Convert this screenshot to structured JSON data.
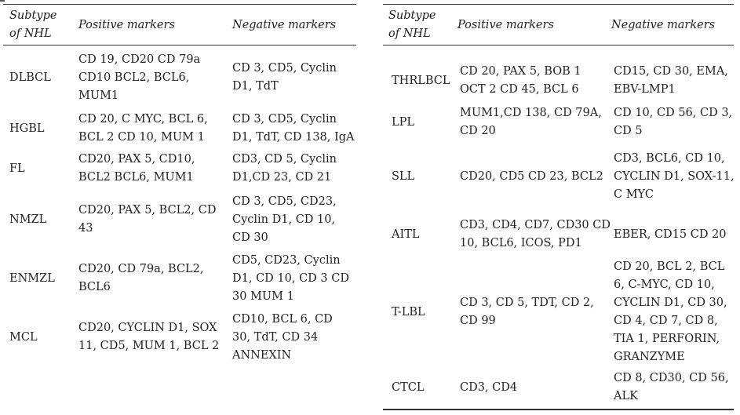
{
  "headers": {
    "subtype": [
      "Subtype",
      "of NHL"
    ],
    "positive": "Positive markers",
    "negative": "Negative markers"
  },
  "left_rows": [
    {
      "subtype": "DLBCL",
      "positive": [
        "CD 19, CD20 CD 79a",
        "CD10 BCL2, BCL6,",
        "MUM1"
      ],
      "negative": [
        "CD 3, CD5, Cyclin",
        "D1, TdT"
      ]
    },
    {
      "subtype": "HGBL",
      "positive": [
        "CD 20, C MYC, BCL 6,",
        "BCL 2 CD 10, MUM 1"
      ],
      "negative": [
        "CD 3, CD5, Cyclin",
        "D1, TdT, CD 138, IgA"
      ]
    },
    {
      "subtype": "FL",
      "positive": [
        "CD20, PAX 5, CD10,",
        "BCL2 BCL6, MUM1"
      ],
      "negative": [
        "CD3, CD 5, Cyclin",
        "D1,CD 23, CD 21"
      ]
    },
    {
      "subtype": "NMZL",
      "positive": [
        "CD20, PAX 5, BCL2, CD",
        "43"
      ],
      "negative": [
        "CD 3, CD5, CD23,",
        "Cyclin D1, CD 10,",
        "CD 30"
      ]
    },
    {
      "subtype": "ENMZL",
      "positive": [
        "CD20, CD 79a, BCL2,",
        "BCL6"
      ],
      "negative": [
        "CD5, CD23, Cyclin",
        "D1, CD 10, CD 3 CD",
        "30 MUM 1"
      ]
    },
    {
      "subtype": "MCL",
      "positive": [
        "CD20, CYCLIN D1, SOX",
        "11, CD5, MUM 1, BCL 2"
      ],
      "negative": [
        "CD10, BCL 6, CD",
        "30, TdT, CD 34",
        "ANNEXIN"
      ]
    }
  ],
  "right_rows": [
    {
      "subtype": "THRLBCL",
      "positive": [
        "CD 20, PAX 5, BOB 1",
        "OCT 2 CD 45, BCL 6"
      ],
      "negative": [
        "CD15, CD 30, EMA,",
        "EBV-LMP1"
      ]
    },
    {
      "subtype": "LPL",
      "positive": [
        "MUM1,CD 138, CD 79A,",
        "CD 20"
      ],
      "negative": [
        "CD 10, CD 56, CD 3,",
        "CD 5"
      ]
    },
    {
      "subtype": "SLL",
      "positive": [
        "CD20, CD5 CD 23, BCL2"
      ],
      "negative": [
        "CD3, BCL6, CD 10,",
        "CYCLIN D1, SOX-11,",
        "C MYC"
      ]
    },
    {
      "subtype": "AITL",
      "positive": [
        "CD3, CD4, CD7, CD30 CD",
        "10, BCL6, ICOS, PD1"
      ],
      "negative": [
        "EBER, CD15 CD 20"
      ]
    },
    {
      "subtype": "T-LBL",
      "positive": [
        "CD 3, CD 5, TDT, CD 2,",
        "CD 99"
      ],
      "negative": [
        "CD 20, BCL 2, BCL",
        "6, C-MYC, CD 10,",
        "CYCLIN D1, CD 30,",
        "CD 4, CD 7, CD 8,",
        "TIA 1, PERFORIN,",
        "GRANZYME"
      ]
    },
    {
      "subtype": "CTCL",
      "positive": [
        "CD3, CD4"
      ],
      "negative": [
        "CD 8, CD30, CD 56,",
        "ALK"
      ]
    }
  ]
}
